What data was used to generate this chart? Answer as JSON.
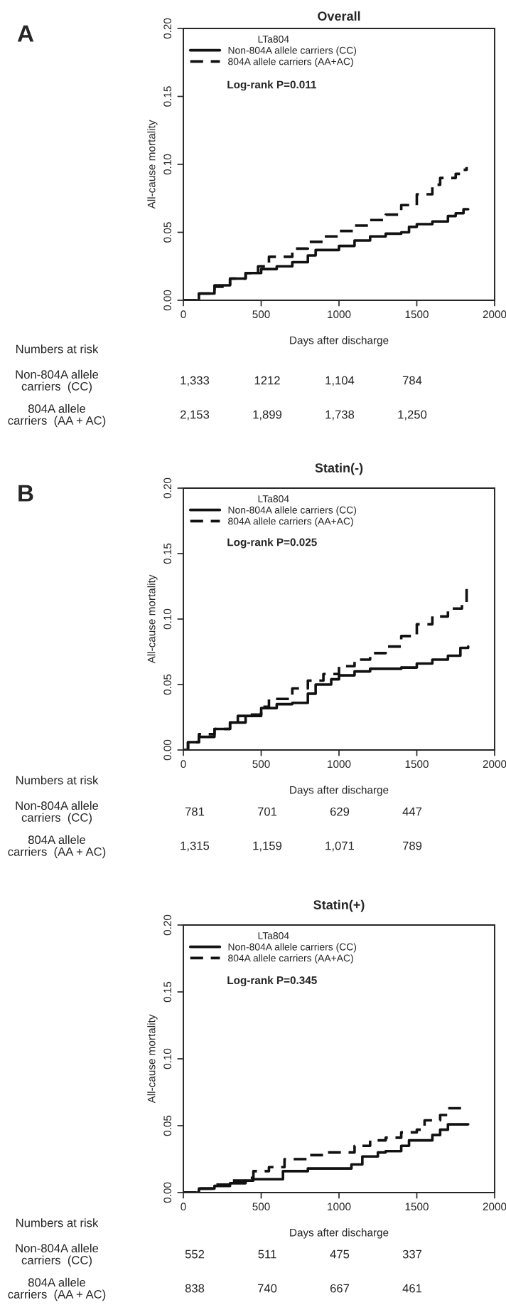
{
  "chart_data": [
    {
      "type": "step",
      "title": "Overall",
      "xlabel": "Days after discharge",
      "ylabel": "All-cause mortality",
      "legend_title": "LTa804",
      "legend": "top left",
      "xlim": [
        0,
        2000
      ],
      "ylim": [
        0,
        0.2
      ],
      "xticks": [
        0,
        500,
        1000,
        1500,
        2000
      ],
      "yticks": [
        {
          "value": 0,
          "label": "0.00"
        },
        {
          "value": 0.05,
          "label": "0.05"
        },
        {
          "value": 0.1,
          "label": "0.10"
        },
        {
          "value": 0.15,
          "label": "0.15"
        },
        {
          "value": 0.2,
          "label": "0.20"
        }
      ],
      "grid": false,
      "annotations": [
        "A",
        "Log-rank P=0.011",
        "Numbers at risk",
        "Non-804A allele\ncarriers  (CC)",
        "1,333",
        "1212",
        "1,104",
        "784",
        "804A allele\ncarriers  (AA + AC)",
        "2,153",
        "1,899",
        "1,738",
        "1,250"
      ],
      "series": [
        {
          "name": "Non-804A allele carriers (CC)",
          "color": "#111111",
          "line_style": "solid",
          "x": [
            0,
            100,
            200,
            300,
            400,
            500,
            600,
            700,
            800,
            850,
            1000,
            1100,
            1200,
            1300,
            1400,
            1450,
            1500,
            1600,
            1700,
            1750,
            1800,
            1830
          ],
          "values": [
            0,
            0.005,
            0.011,
            0.016,
            0.02,
            0.023,
            0.025,
            0.028,
            0.033,
            0.037,
            0.04,
            0.044,
            0.047,
            0.049,
            0.05,
            0.054,
            0.056,
            0.058,
            0.062,
            0.064,
            0.067,
            0.067
          ]
        },
        {
          "name": "804A allele carriers (AA+AC)",
          "color": "#111111",
          "line_style": "dashed",
          "x": [
            0,
            100,
            200,
            300,
            400,
            480,
            550,
            700,
            800,
            900,
            1000,
            1100,
            1200,
            1300,
            1400,
            1500,
            1600,
            1650,
            1750,
            1800,
            1820
          ],
          "values": [
            0,
            0.005,
            0.01,
            0.016,
            0.02,
            0.025,
            0.032,
            0.038,
            0.043,
            0.047,
            0.051,
            0.055,
            0.059,
            0.063,
            0.07,
            0.078,
            0.085,
            0.09,
            0.093,
            0.096,
            0.098
          ]
        }
      ]
    },
    {
      "type": "step",
      "title": "Statin(-)",
      "xlabel": "Days after discharge",
      "ylabel": "All-cause mortality",
      "legend_title": "LTa804",
      "legend": "top left",
      "xlim": [
        0,
        2000
      ],
      "ylim": [
        0,
        0.2
      ],
      "xticks": [
        0,
        500,
        1000,
        1500,
        2000
      ],
      "yticks": [
        {
          "value": 0,
          "label": "0.00"
        },
        {
          "value": 0.05,
          "label": "0.05"
        },
        {
          "value": 0.1,
          "label": "0.10"
        },
        {
          "value": 0.15,
          "label": "0.15"
        },
        {
          "value": 0.2,
          "label": "0.20"
        }
      ],
      "grid": false,
      "annotations": [
        "B",
        "Log-rank P=0.025",
        "Numbers at risk",
        "Non-804A allele\ncarriers  (CC)",
        "781",
        "701",
        "629",
        "447",
        "804A allele\ncarriers  (AA + AC)",
        "1,315",
        "1,159",
        "1,071",
        "789"
      ],
      "series": [
        {
          "name": "Non-804A allele carriers (CC)",
          "color": "#111111",
          "line_style": "solid",
          "x": [
            0,
            30,
            100,
            200,
            300,
            350,
            500,
            600,
            700,
            800,
            850,
            950,
            1000,
            1100,
            1200,
            1400,
            1500,
            1600,
            1700,
            1780,
            1830
          ],
          "values": [
            0,
            0.006,
            0.01,
            0.016,
            0.021,
            0.026,
            0.032,
            0.035,
            0.036,
            0.043,
            0.05,
            0.054,
            0.057,
            0.06,
            0.062,
            0.063,
            0.066,
            0.069,
            0.072,
            0.078,
            0.079
          ]
        },
        {
          "name": "804A allele carriers (AA+AC)",
          "color": "#111111",
          "line_style": "dashed",
          "x": [
            0,
            30,
            100,
            200,
            300,
            400,
            500,
            550,
            700,
            800,
            900,
            1000,
            1100,
            1200,
            1300,
            1400,
            1500,
            1600,
            1700,
            1790,
            1820
          ],
          "values": [
            0,
            0.006,
            0.012,
            0.016,
            0.021,
            0.027,
            0.033,
            0.039,
            0.047,
            0.053,
            0.058,
            0.064,
            0.069,
            0.074,
            0.079,
            0.087,
            0.096,
            0.102,
            0.108,
            0.112,
            0.124
          ]
        }
      ]
    },
    {
      "type": "step",
      "title": "Statin(+)",
      "xlabel": "Days after discharge",
      "ylabel": "All-cause mortality",
      "legend_title": "LTa804",
      "legend": "top left",
      "xlim": [
        0,
        2000
      ],
      "ylim": [
        0,
        0.2
      ],
      "xticks": [
        0,
        500,
        1000,
        1500,
        2000
      ],
      "yticks": [
        {
          "value": 0,
          "label": "0.00"
        },
        {
          "value": 0.05,
          "label": "0.05"
        },
        {
          "value": 0.1,
          "label": "0.10"
        },
        {
          "value": 0.15,
          "label": "0.15"
        },
        {
          "value": 0.2,
          "label": "0.20"
        }
      ],
      "grid": false,
      "annotations": [
        "Log-rank P=0.345",
        "Numbers at risk",
        "Non-804A allele\ncarriers  (CC)",
        "552",
        "511",
        "475",
        "337",
        "804A allele\ncarriers  (AA + AC)",
        "838",
        "740",
        "667",
        "461"
      ],
      "series": [
        {
          "name": "Non-804A allele carriers (CC)",
          "color": "#111111",
          "line_style": "solid",
          "x": [
            0,
            100,
            200,
            300,
            400,
            450,
            600,
            640,
            800,
            1050,
            1080,
            1150,
            1250,
            1300,
            1400,
            1450,
            1550,
            1600,
            1650,
            1700,
            1830
          ],
          "values": [
            0,
            0.003,
            0.005,
            0.007,
            0.009,
            0.01,
            0.01,
            0.016,
            0.018,
            0.018,
            0.021,
            0.027,
            0.03,
            0.031,
            0.035,
            0.039,
            0.039,
            0.043,
            0.047,
            0.051,
            0.051
          ]
        },
        {
          "name": "804A allele carriers (AA+AC)",
          "color": "#111111",
          "line_style": "dashed",
          "x": [
            0,
            100,
            200,
            300,
            400,
            450,
            550,
            650,
            800,
            900,
            1050,
            1100,
            1200,
            1300,
            1400,
            1500,
            1550,
            1650,
            1700,
            1790
          ],
          "values": [
            0,
            0.003,
            0.006,
            0.009,
            0.011,
            0.016,
            0.019,
            0.025,
            0.028,
            0.03,
            0.03,
            0.035,
            0.039,
            0.041,
            0.045,
            0.047,
            0.054,
            0.058,
            0.063,
            0.064
          ]
        }
      ]
    }
  ]
}
